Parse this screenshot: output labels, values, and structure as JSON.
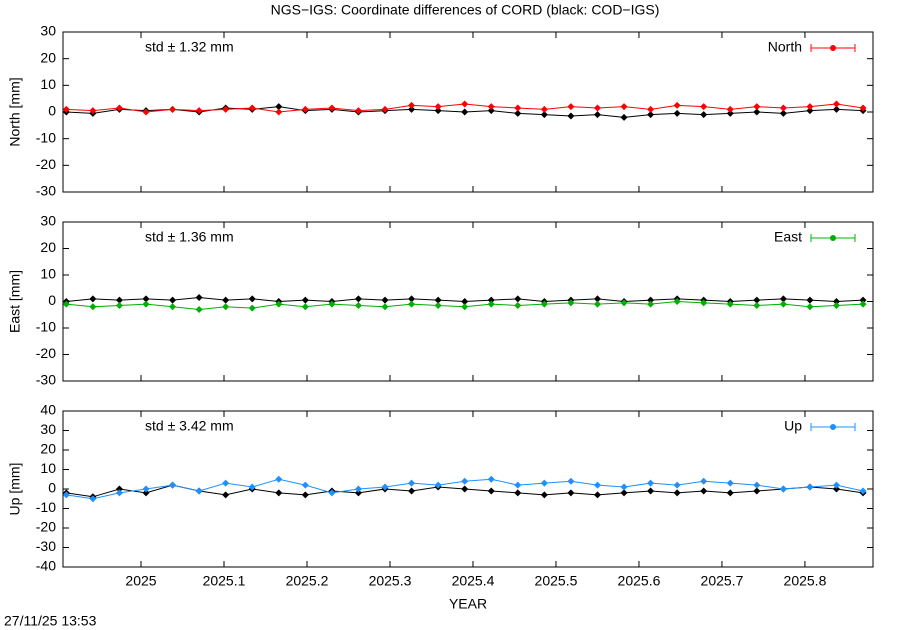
{
  "title": "NGS−IGS: Coordinate differences of CORD (black: COD−IGS)",
  "timestamp": "27/11/25 13:53",
  "chart_data": [
    {
      "type": "line",
      "ylabel": "North [mm]",
      "annotation": "std ± 1.32 mm",
      "annotation_color": "#ff0000",
      "xtick_labels": false,
      "x": [
        2024.91,
        2024.942,
        2024.974,
        2025.006,
        2025.038,
        2025.07,
        2025.102,
        2025.134,
        2025.166,
        2025.198,
        2025.23,
        2025.262,
        2025.294,
        2025.326,
        2025.358,
        2025.39,
        2025.422,
        2025.454,
        2025.486,
        2025.518,
        2025.55,
        2025.582,
        2025.614,
        2025.646,
        2025.678,
        2025.71,
        2025.742,
        2025.774,
        2025.806,
        2025.838,
        2025.87
      ],
      "xlim": [
        2024.906,
        2025.882
      ],
      "xticks": [
        2025,
        2025.1,
        2025.2,
        2025.3,
        2025.4,
        2025.5,
        2025.6,
        2025.7,
        2025.8
      ],
      "ylim": [
        -30,
        30
      ],
      "yticks": [
        -30,
        -20,
        -10,
        0,
        10,
        20,
        30
      ],
      "series": [
        {
          "color": "#000000",
          "values": [
            0,
            -0.5,
            1,
            0.5,
            1,
            0,
            1.5,
            1,
            2,
            0.5,
            1,
            0,
            0.5,
            1,
            0.5,
            0,
            0.5,
            -0.5,
            -1,
            -1.5,
            -1,
            -2,
            -1,
            -0.5,
            -1,
            -0.5,
            0,
            -0.5,
            0.5,
            1,
            0.5
          ]
        },
        {
          "name": "North",
          "color": "#ff0000",
          "values": [
            1,
            0.5,
            1.5,
            0,
            1,
            0.5,
            1,
            1.5,
            0,
            1,
            1.5,
            0.5,
            1,
            2.5,
            2,
            3,
            2,
            1.5,
            1,
            2,
            1.5,
            2,
            1,
            2.5,
            2,
            1,
            2,
            1.5,
            2,
            3,
            1.5
          ]
        }
      ]
    },
    {
      "type": "line",
      "ylabel": "East [mm]",
      "annotation": "std ± 1.36 mm",
      "annotation_color": "#00b000",
      "xtick_labels": false,
      "x": [
        2024.91,
        2024.942,
        2024.974,
        2025.006,
        2025.038,
        2025.07,
        2025.102,
        2025.134,
        2025.166,
        2025.198,
        2025.23,
        2025.262,
        2025.294,
        2025.326,
        2025.358,
        2025.39,
        2025.422,
        2025.454,
        2025.486,
        2025.518,
        2025.55,
        2025.582,
        2025.614,
        2025.646,
        2025.678,
        2025.71,
        2025.742,
        2025.774,
        2025.806,
        2025.838,
        2025.87
      ],
      "xlim": [
        2024.906,
        2025.882
      ],
      "xticks": [
        2025,
        2025.1,
        2025.2,
        2025.3,
        2025.4,
        2025.5,
        2025.6,
        2025.7,
        2025.8
      ],
      "ylim": [
        -30,
        30
      ],
      "yticks": [
        -30,
        -20,
        -10,
        0,
        10,
        20,
        30
      ],
      "series": [
        {
          "color": "#000000",
          "values": [
            0,
            1,
            0.5,
            1,
            0.5,
            1.5,
            0.5,
            1,
            0,
            0.5,
            0,
            1,
            0.5,
            1,
            0.5,
            0,
            0.5,
            1,
            0,
            0.5,
            1,
            0,
            0.5,
            1,
            0.5,
            0,
            0.5,
            1,
            0.5,
            0,
            0.5
          ]
        },
        {
          "name": "East",
          "color": "#00b000",
          "values": [
            -1,
            -2,
            -1.5,
            -1,
            -2,
            -3,
            -2,
            -2.5,
            -1,
            -2,
            -1,
            -1.5,
            -2,
            -1,
            -1.5,
            -2,
            -1,
            -1.5,
            -1,
            -0.5,
            -1,
            -0.5,
            -1,
            0,
            -0.5,
            -1,
            -1.5,
            -1,
            -2,
            -1.5,
            -1
          ]
        }
      ]
    },
    {
      "type": "line",
      "ylabel": "Up [mm]",
      "xlabel": "YEAR",
      "annotation": "std ± 3.42 mm",
      "annotation_color": "#1e90ff",
      "xtick_labels": true,
      "x": [
        2024.91,
        2024.942,
        2024.974,
        2025.006,
        2025.038,
        2025.07,
        2025.102,
        2025.134,
        2025.166,
        2025.198,
        2025.23,
        2025.262,
        2025.294,
        2025.326,
        2025.358,
        2025.39,
        2025.422,
        2025.454,
        2025.486,
        2025.518,
        2025.55,
        2025.582,
        2025.614,
        2025.646,
        2025.678,
        2025.71,
        2025.742,
        2025.774,
        2025.806,
        2025.838,
        2025.87
      ],
      "xlim": [
        2024.906,
        2025.882
      ],
      "xticks": [
        2025,
        2025.1,
        2025.2,
        2025.3,
        2025.4,
        2025.5,
        2025.6,
        2025.7,
        2025.8
      ],
      "ylim": [
        -40,
        40
      ],
      "yticks": [
        -40,
        -30,
        -20,
        -10,
        0,
        10,
        20,
        30,
        40
      ],
      "series": [
        {
          "color": "#000000",
          "values": [
            -2,
            -4,
            0,
            -2,
            2,
            -1,
            -3,
            0,
            -2,
            -3,
            -1,
            -2,
            0,
            -1,
            1,
            0,
            -1,
            -2,
            -3,
            -2,
            -3,
            -2,
            -1,
            -2,
            -1,
            -2,
            -1,
            0,
            1,
            0,
            -2
          ]
        },
        {
          "name": "Up",
          "color": "#1e90ff",
          "values": [
            -3,
            -5,
            -2,
            0,
            2,
            -1,
            3,
            1,
            5,
            2,
            -2,
            0,
            1,
            3,
            2,
            4,
            5,
            2,
            3,
            4,
            2,
            1,
            3,
            2,
            4,
            3,
            2,
            0,
            1,
            2,
            -1
          ]
        }
      ]
    }
  ]
}
